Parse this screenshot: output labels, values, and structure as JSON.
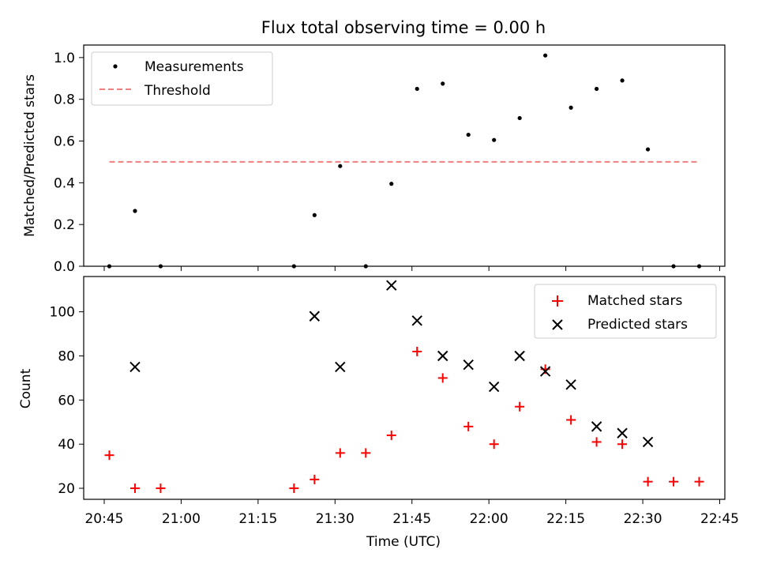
{
  "title": "Flux total observing time = 0.00 h",
  "colors": {
    "measurement": "#000000",
    "threshold": "#f08080",
    "matched": "#ff0000",
    "predicted": "#000000"
  },
  "chart_data": [
    {
      "type": "scatter",
      "ylabel": "Matched/Predicted stars",
      "xlim": [
        "20:41",
        "22:46"
      ],
      "ylim": [
        0,
        1.06
      ],
      "yticks": [
        0,
        0.2,
        0.4,
        0.6,
        0.8,
        1.0
      ],
      "ytick_labels": [
        "0.0",
        "0.2",
        "0.4",
        "0.6",
        "0.8",
        "1.0"
      ],
      "legend_position": "top-left",
      "series": [
        {
          "name": "Measurements",
          "marker": "dot",
          "points": [
            {
              "x": "20:46",
              "y": 0.0
            },
            {
              "x": "20:51",
              "y": 0.265
            },
            {
              "x": "20:56",
              "y": 0.0
            },
            {
              "x": "21:22",
              "y": 0.0
            },
            {
              "x": "21:26",
              "y": 0.245
            },
            {
              "x": "21:31",
              "y": 0.48
            },
            {
              "x": "21:36",
              "y": 0.0
            },
            {
              "x": "21:41",
              "y": 0.395
            },
            {
              "x": "21:46",
              "y": 0.85
            },
            {
              "x": "21:51",
              "y": 0.875
            },
            {
              "x": "21:56",
              "y": 0.63
            },
            {
              "x": "22:01",
              "y": 0.605
            },
            {
              "x": "22:06",
              "y": 0.71
            },
            {
              "x": "22:11",
              "y": 1.01
            },
            {
              "x": "22:16",
              "y": 0.76
            },
            {
              "x": "22:21",
              "y": 0.85
            },
            {
              "x": "22:26",
              "y": 0.89
            },
            {
              "x": "22:31",
              "y": 0.56
            },
            {
              "x": "22:36",
              "y": 0.0
            },
            {
              "x": "22:41",
              "y": 0.0
            }
          ]
        },
        {
          "name": "Threshold",
          "marker": "dashed-line",
          "points": [
            {
              "x": "20:46",
              "y": 0.5
            },
            {
              "x": "22:41",
              "y": 0.5
            }
          ]
        }
      ]
    },
    {
      "type": "scatter",
      "xlabel": "Time (UTC)",
      "ylabel": "Count",
      "xlim": [
        "20:41",
        "22:46"
      ],
      "ylim": [
        15,
        116
      ],
      "xticks": [
        "20:45",
        "21:00",
        "21:15",
        "21:30",
        "21:45",
        "22:00",
        "22:15",
        "22:30",
        "22:45"
      ],
      "yticks": [
        20,
        40,
        60,
        80,
        100
      ],
      "ytick_labels": [
        "20",
        "40",
        "60",
        "80",
        "100"
      ],
      "legend_position": "top-right",
      "series": [
        {
          "name": "Matched stars",
          "marker": "plus",
          "points": [
            {
              "x": "20:46",
              "y": 35
            },
            {
              "x": "20:51",
              "y": 20
            },
            {
              "x": "20:56",
              "y": 20
            },
            {
              "x": "21:22",
              "y": 20
            },
            {
              "x": "21:26",
              "y": 24
            },
            {
              "x": "21:31",
              "y": 36
            },
            {
              "x": "21:36",
              "y": 36
            },
            {
              "x": "21:41",
              "y": 44
            },
            {
              "x": "21:46",
              "y": 82
            },
            {
              "x": "21:51",
              "y": 70
            },
            {
              "x": "21:56",
              "y": 48
            },
            {
              "x": "22:01",
              "y": 40
            },
            {
              "x": "22:06",
              "y": 57
            },
            {
              "x": "22:11",
              "y": 74
            },
            {
              "x": "22:16",
              "y": 51
            },
            {
              "x": "22:21",
              "y": 41
            },
            {
              "x": "22:26",
              "y": 40
            },
            {
              "x": "22:31",
              "y": 23
            },
            {
              "x": "22:36",
              "y": 23
            },
            {
              "x": "22:41",
              "y": 23
            }
          ]
        },
        {
          "name": "Predicted stars",
          "marker": "x",
          "points": [
            {
              "x": "20:51",
              "y": 75
            },
            {
              "x": "21:26",
              "y": 98
            },
            {
              "x": "21:31",
              "y": 75
            },
            {
              "x": "21:41",
              "y": 112
            },
            {
              "x": "21:46",
              "y": 96
            },
            {
              "x": "21:51",
              "y": 80
            },
            {
              "x": "21:56",
              "y": 76
            },
            {
              "x": "22:01",
              "y": 66
            },
            {
              "x": "22:06",
              "y": 80
            },
            {
              "x": "22:11",
              "y": 73
            },
            {
              "x": "22:16",
              "y": 67
            },
            {
              "x": "22:21",
              "y": 48
            },
            {
              "x": "22:26",
              "y": 45
            },
            {
              "x": "22:31",
              "y": 41
            }
          ]
        }
      ]
    }
  ]
}
